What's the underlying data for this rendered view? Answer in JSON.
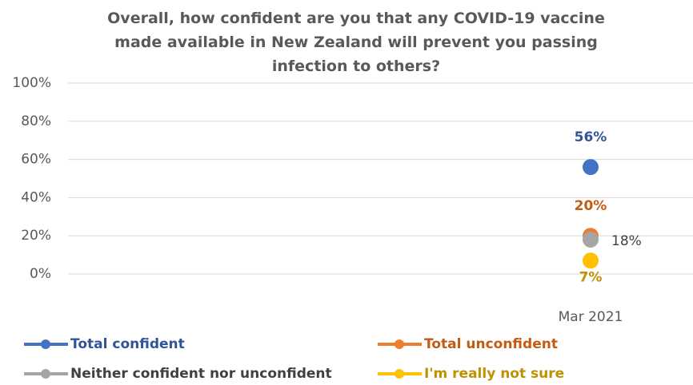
{
  "chart_data": {
    "type": "dot",
    "title": "Overall, how confident are you that any COVID-19 vaccine made available in New Zealand will prevent you passing infection to others?",
    "categories": [
      "Mar 2021"
    ],
    "ylim": [
      0,
      100
    ],
    "yticks": [
      {
        "value": 0,
        "label": "0%"
      },
      {
        "value": 20,
        "label": "20%"
      },
      {
        "value": 40,
        "label": "40%"
      },
      {
        "value": 60,
        "label": "60%"
      },
      {
        "value": 80,
        "label": "80%"
      },
      {
        "value": 100,
        "label": "100%"
      }
    ],
    "grid": true,
    "legend": "bottom",
    "series": [
      {
        "name": "Total confident",
        "color": "#4472c4",
        "label_color": "#2f5597",
        "values": [
          56
        ],
        "value_labels": [
          "56%"
        ]
      },
      {
        "name": "Total unconfident",
        "color": "#ed7d31",
        "label_color": "#c55a11",
        "values": [
          20
        ],
        "value_labels": [
          "20%"
        ]
      },
      {
        "name": "Neither confident nor unconfident",
        "color": "#a5a5a5",
        "label_color": "#404040",
        "values": [
          18
        ],
        "value_labels": [
          "18%"
        ]
      },
      {
        "name": "I'm really not sure",
        "color": "#ffc000",
        "label_color": "#bf9000",
        "values": [
          7
        ],
        "value_labels": [
          "7%"
        ]
      }
    ]
  }
}
